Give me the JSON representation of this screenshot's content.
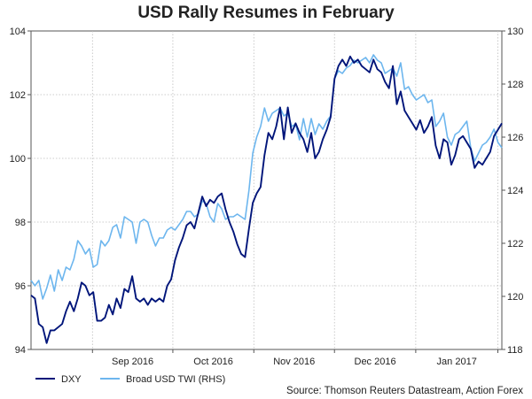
{
  "chart_data": {
    "type": "line",
    "title": "USD Rally Resumes in February",
    "source": "Source: Thomson Reuters Datastream, Action Forex",
    "x_ticks": [
      "Sep 2016",
      "Oct 2016",
      "Nov 2016",
      "Dec 2016",
      "Jan 2017"
    ],
    "y_left": {
      "min": 94,
      "max": 104,
      "ticks": [
        "94",
        "96",
        "98",
        "100",
        "102",
        "104"
      ]
    },
    "y_right": {
      "min": 118,
      "max": 130,
      "ticks": [
        "118",
        "120",
        "122",
        "124",
        "126",
        "128",
        "130"
      ]
    },
    "grid": true,
    "legend_position": "bottom-left",
    "colors": {
      "DXY": "#00157a",
      "Broad USD TWI (RHS)": "#6db6ee"
    },
    "series": [
      {
        "name": "DXY",
        "axis": "left",
        "values": [
          95.7,
          95.6,
          94.8,
          94.7,
          94.2,
          94.6,
          94.6,
          94.7,
          94.8,
          95.2,
          95.5,
          95.2,
          95.6,
          96.1,
          96.0,
          95.7,
          95.8,
          94.9,
          94.9,
          95.0,
          95.4,
          95.1,
          95.6,
          95.3,
          95.9,
          95.8,
          96.3,
          95.6,
          95.5,
          95.6,
          95.4,
          95.6,
          95.5,
          95.6,
          95.5,
          96.0,
          96.2,
          96.8,
          97.2,
          97.5,
          97.9,
          98.0,
          97.8,
          98.3,
          98.8,
          98.5,
          98.7,
          98.6,
          98.8,
          98.9,
          98.4,
          98.0,
          97.7,
          97.3,
          97.0,
          96.9,
          97.8,
          98.6,
          98.9,
          99.1,
          100.1,
          100.8,
          100.6,
          101.0,
          101.6,
          100.6,
          101.6,
          100.8,
          101.1,
          100.8,
          100.6,
          100.2,
          100.8,
          100.0,
          100.2,
          100.6,
          100.9,
          101.3,
          102.5,
          102.9,
          103.1,
          102.9,
          103.2,
          103.0,
          103.1,
          102.9,
          102.8,
          102.7,
          103.1,
          102.8,
          102.7,
          102.4,
          102.2,
          102.9,
          101.7,
          102.1,
          101.5,
          101.3,
          101.1,
          100.9,
          101.2,
          100.8,
          101.0,
          101.3,
          100.4,
          100.0,
          100.6,
          100.5,
          99.8,
          100.1,
          100.6,
          100.7,
          100.5,
          100.3,
          99.7,
          99.9,
          99.8,
          100.0,
          100.2,
          100.7,
          100.9,
          101.1
        ]
      },
      {
        "name": "Broad USD TWI (RHS)",
        "axis": "right",
        "values": [
          120.6,
          120.4,
          120.6,
          119.9,
          120.3,
          120.8,
          120.2,
          121.0,
          120.6,
          121.1,
          121.0,
          121.4,
          122.1,
          121.9,
          121.6,
          121.8,
          121.1,
          121.2,
          122.1,
          121.9,
          122.1,
          122.6,
          122.7,
          122.2,
          123.0,
          122.9,
          122.8,
          122.0,
          122.8,
          122.9,
          122.8,
          122.3,
          121.9,
          122.2,
          122.2,
          122.5,
          122.6,
          122.5,
          122.7,
          122.9,
          123.2,
          123.2,
          123.0,
          123.1,
          123.6,
          123.5,
          123.0,
          122.8,
          123.5,
          123.3,
          122.9,
          123.0,
          123.0,
          123.1,
          123.0,
          122.9,
          124.0,
          125.4,
          126.0,
          126.4,
          127.1,
          126.6,
          126.9,
          127.0,
          127.1,
          126.8,
          126.9,
          126.4,
          126.5,
          125.9,
          126.7,
          126.0,
          126.7,
          126.1,
          126.5,
          126.3,
          126.6,
          126.8,
          128.2,
          128.5,
          128.4,
          128.6,
          128.7,
          128.9,
          128.8,
          128.9,
          129.0,
          128.8,
          129.1,
          128.9,
          128.8,
          128.4,
          128.5,
          128.6,
          128.3,
          128.8,
          127.8,
          127.9,
          127.6,
          127.4,
          127.5,
          127.6,
          127.3,
          127.4,
          126.4,
          126.6,
          126.9,
          126.0,
          125.7,
          126.1,
          126.2,
          126.4,
          126.6,
          125.6,
          125.1,
          125.4,
          125.7,
          125.8,
          126.0,
          126.3,
          125.8,
          125.6
        ]
      }
    ]
  }
}
